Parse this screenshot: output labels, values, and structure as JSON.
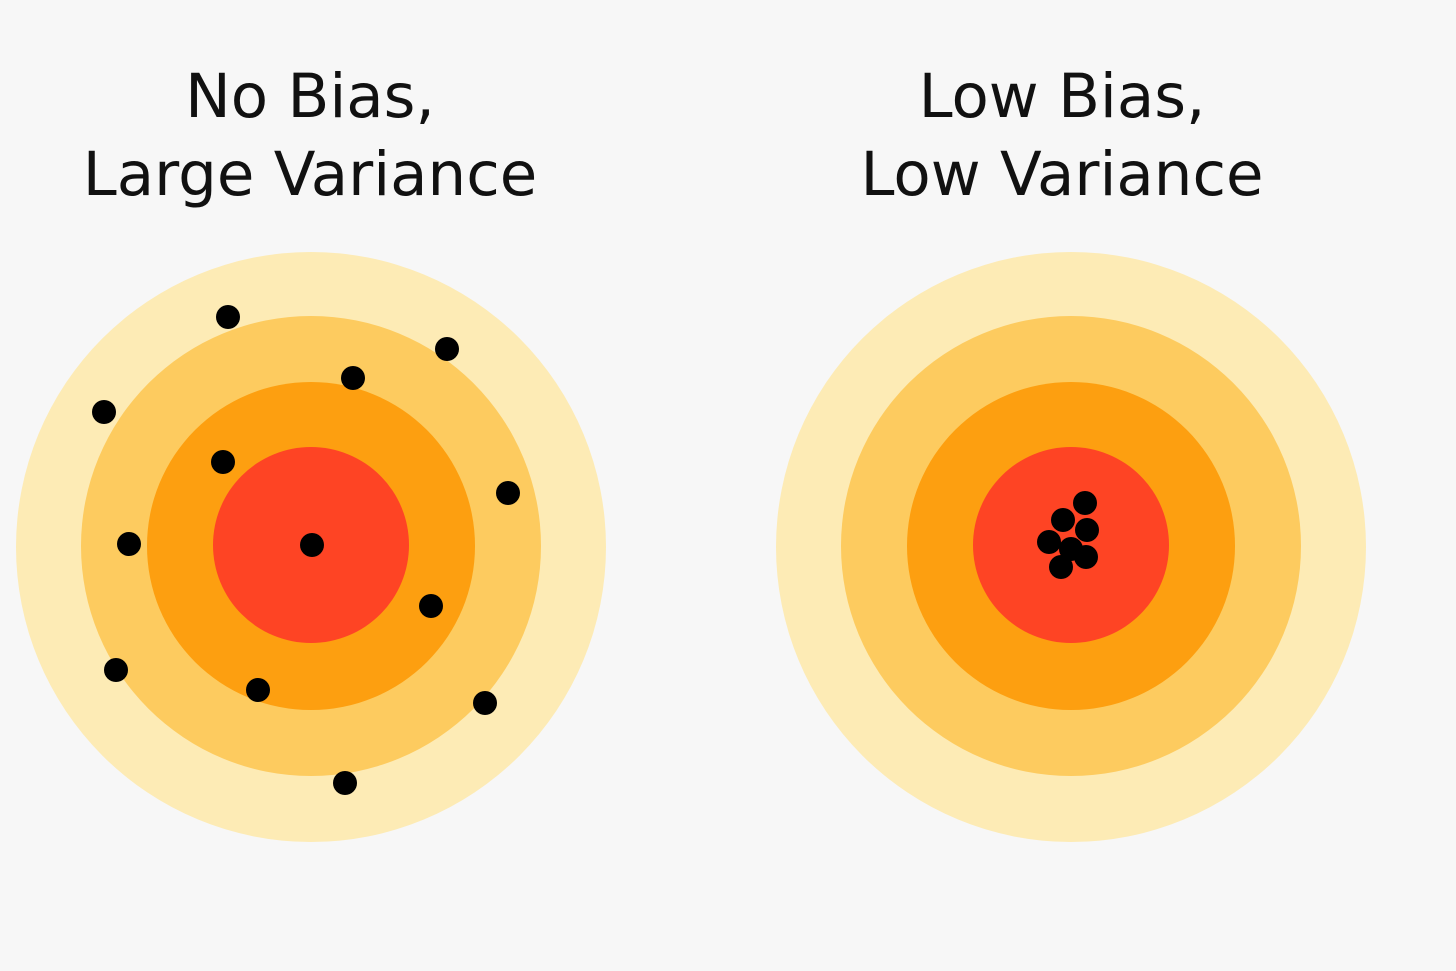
{
  "panels": [
    {
      "title_line1": "No Bias,",
      "title_line2": "Large Variance",
      "hits": [
        [
          228,
          317
        ],
        [
          447,
          349
        ],
        [
          353,
          378
        ],
        [
          104,
          412
        ],
        [
          223,
          462
        ],
        [
          508,
          493
        ],
        [
          129,
          544
        ],
        [
          312,
          545
        ],
        [
          431,
          606
        ],
        [
          116,
          670
        ],
        [
          258,
          690
        ],
        [
          485,
          703
        ],
        [
          345,
          783
        ]
      ]
    },
    {
      "title_line1": "Low Bias,",
      "title_line2": "Low Variance",
      "hits": [
        [
          1085,
          503
        ],
        [
          1063,
          520
        ],
        [
          1087,
          530
        ],
        [
          1049,
          542
        ],
        [
          1071,
          549
        ],
        [
          1086,
          557
        ],
        [
          1061,
          567
        ]
      ]
    }
  ],
  "colors": {
    "background": "#f7f7f7",
    "ring_outer": "#fdebb5",
    "ring_2": "#fdcb5f",
    "ring_3": "#fd9f10",
    "bullseye": "#fe4424",
    "hit": "#000000"
  }
}
